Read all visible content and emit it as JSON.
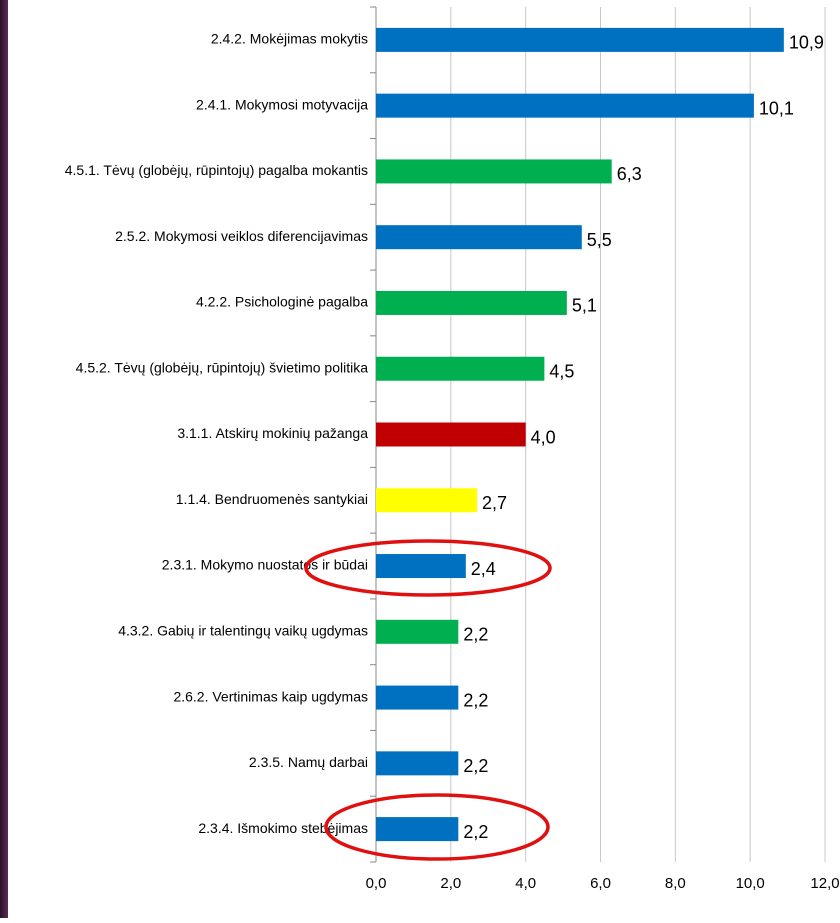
{
  "chart_data": {
    "type": "bar",
    "orientation": "horizontal",
    "categories": [
      "2.4.2. Mokėjimas mokytis",
      "2.4.1. Mokymosi motyvacija",
      "4.5.1. Tėvų (globėjų, rūpintojų) pagalba mokantis",
      "2.5.2. Mokymosi veiklos diferencijavimas",
      "4.2.2. Psichologinė pagalba",
      "4.5.2. Tėvų (globėjų, rūpintojų) švietimo politika",
      "3.1.1. Atskirų mokinių pažanga",
      "1.1.4. Bendruomenės  santykiai",
      "2.3.1. Mokymo nuostatos ir būdai",
      "4.3.2. Gabių ir talentingų vaikų ugdymas",
      "2.6.2. Vertinimas kaip ugdymas",
      "2.3.5. Namų darbai",
      "2.3.4. Išmokimo stebėjimas"
    ],
    "values": [
      10.9,
      10.1,
      6.3,
      5.5,
      5.1,
      4.5,
      4.0,
      2.7,
      2.4,
      2.2,
      2.2,
      2.2,
      2.2
    ],
    "value_labels": [
      "10,9",
      "10,1",
      "6,3",
      "5,5",
      "5,1",
      "4,5",
      "4,0",
      "2,7",
      "2,4",
      "2,2",
      "2,2",
      "2,2",
      "2,2"
    ],
    "colors": [
      "#0070c0",
      "#0070c0",
      "#00b050",
      "#0070c0",
      "#00b050",
      "#00b050",
      "#c00000",
      "#ffff00",
      "#0070c0",
      "#00b050",
      "#0070c0",
      "#0070c0",
      "#0070c0"
    ],
    "xlim": [
      0,
      12
    ],
    "xticks": [
      {
        "value": 0,
        "label": "0,0"
      },
      {
        "value": 2,
        "label": "2,0"
      },
      {
        "value": 4,
        "label": "4,0"
      },
      {
        "value": 6,
        "label": "6,0"
      },
      {
        "value": 8,
        "label": "8,0"
      },
      {
        "value": 10,
        "label": "10,0"
      },
      {
        "value": 12,
        "label": "12,0"
      }
    ],
    "grid": true
  }
}
